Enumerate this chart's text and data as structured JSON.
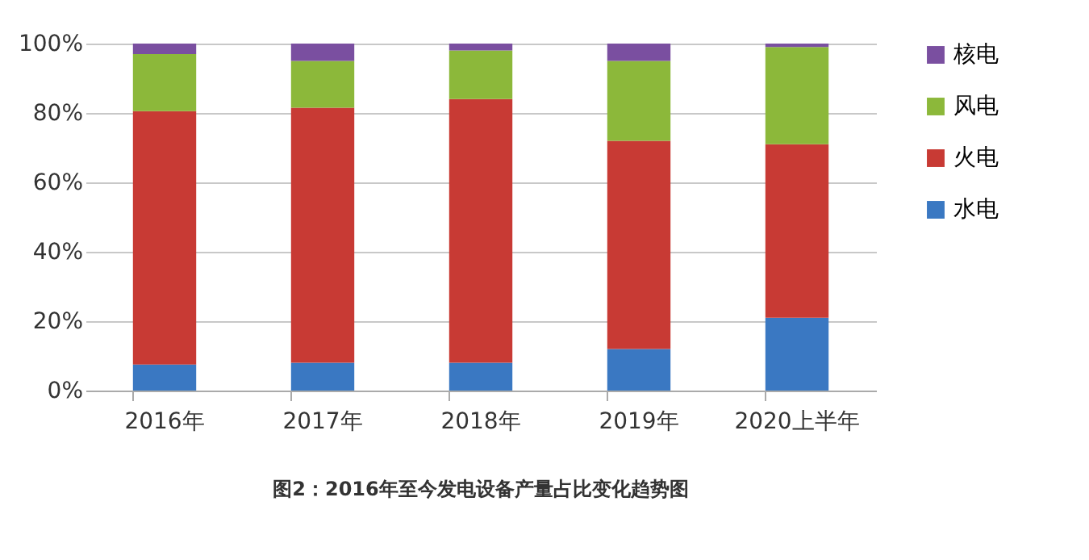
{
  "chart_data": {
    "type": "bar",
    "stacked": true,
    "title": "图2：2016年至今发电设备产量占比变化趋势图",
    "categories": [
      "2016年",
      "2017年",
      "2018年",
      "2019年",
      "2020上半年"
    ],
    "series": [
      {
        "name": "水电",
        "color": "#3a78c2",
        "values": [
          7.5,
          8,
          8,
          12,
          21
        ]
      },
      {
        "name": "火电",
        "color": "#c83a34",
        "values": [
          73,
          73.5,
          76,
          60,
          50
        ]
      },
      {
        "name": "风电",
        "color": "#8cb83a",
        "values": [
          16.5,
          13.5,
          14,
          23,
          28
        ]
      },
      {
        "name": "核电",
        "color": "#7a4fa0",
        "values": [
          3,
          5,
          2,
          5,
          1
        ]
      }
    ],
    "ylim": [
      0,
      100
    ],
    "yticks": [
      {
        "value": 0,
        "label": "0%"
      },
      {
        "value": 20,
        "label": "20%"
      },
      {
        "value": 40,
        "label": "40%"
      },
      {
        "value": 60,
        "label": "60%"
      },
      {
        "value": 80,
        "label": "80%"
      },
      {
        "value": 100,
        "label": "100%"
      }
    ],
    "grid": "y",
    "legend": "right"
  }
}
